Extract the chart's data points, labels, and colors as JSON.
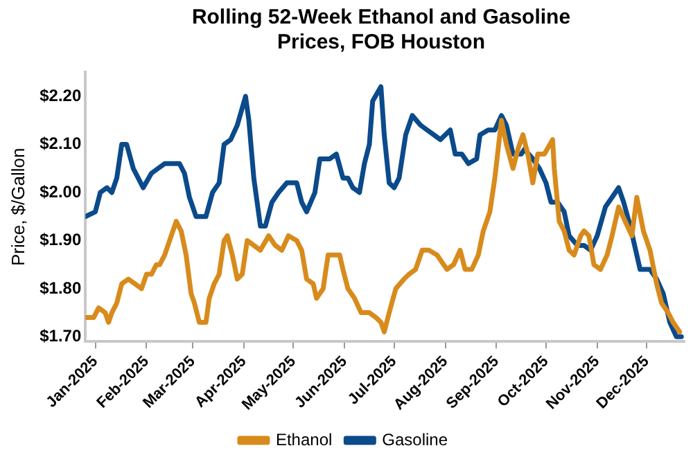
{
  "chart_data": {
    "type": "line",
    "title": "Rolling 52-Week Ethanol and Gasoline Prices, FOB Houston",
    "ylabel": "Price, $/Gallon",
    "legend": "bottom",
    "marker": "none",
    "line_style": "solid",
    "xlim": [
      "2024-12-26",
      "2025-12-24"
    ],
    "xticks": [
      {
        "value": "2025-01-01",
        "label": "Jan-2025"
      },
      {
        "value": "2025-02-01",
        "label": "Feb-2025"
      },
      {
        "value": "2025-03-01",
        "label": "Mar-2025"
      },
      {
        "value": "2025-04-01",
        "label": "Apr-2025"
      },
      {
        "value": "2025-05-01",
        "label": "May-2025"
      },
      {
        "value": "2025-06-01",
        "label": "Jun-2025"
      },
      {
        "value": "2025-07-01",
        "label": "Jul-2025"
      },
      {
        "value": "2025-08-01",
        "label": "Aug-2025"
      },
      {
        "value": "2025-09-01",
        "label": "Sep-2025"
      },
      {
        "value": "2025-10-01",
        "label": "Oct-2025"
      },
      {
        "value": "2025-11-01",
        "label": "Nov-2025"
      },
      {
        "value": "2025-12-01",
        "label": "Dec-2025"
      }
    ],
    "ylim": [
      1.69,
      2.25
    ],
    "yticks": [
      {
        "value": 1.7,
        "label": "$1.70"
      },
      {
        "value": 1.8,
        "label": "$1.80"
      },
      {
        "value": 1.9,
        "label": "$1.90"
      },
      {
        "value": 2.0,
        "label": "$2.00"
      },
      {
        "value": 2.1,
        "label": "$2.10"
      },
      {
        "value": 2.2,
        "label": "$2.20"
      }
    ],
    "series": [
      {
        "name": "Ethanol",
        "color": "#d88b1c",
        "x": [
          "2024-12-26",
          "2024-12-31",
          "2025-01-03",
          "2025-01-07",
          "2025-01-09",
          "2025-01-11",
          "2025-01-14",
          "2025-01-17",
          "2025-01-21",
          "2025-01-25",
          "2025-01-29",
          "2025-02-01",
          "2025-02-04",
          "2025-02-07",
          "2025-02-09",
          "2025-02-12",
          "2025-02-15",
          "2025-02-19",
          "2025-02-22",
          "2025-02-25",
          "2025-02-28",
          "2025-03-02",
          "2025-03-05",
          "2025-03-09",
          "2025-03-11",
          "2025-03-14",
          "2025-03-17",
          "2025-03-20",
          "2025-03-22",
          "2025-03-25",
          "2025-03-28",
          "2025-03-31",
          "2025-04-03",
          "2025-04-07",
          "2025-04-11",
          "2025-04-16",
          "2025-04-20",
          "2025-04-24",
          "2025-04-28",
          "2025-05-03",
          "2025-05-06",
          "2025-05-09",
          "2025-05-13",
          "2025-05-15",
          "2025-05-19",
          "2025-05-22",
          "2025-05-26",
          "2025-05-29",
          "2025-05-31",
          "2025-06-03",
          "2025-06-07",
          "2025-06-11",
          "2025-06-16",
          "2025-06-20",
          "2025-06-23",
          "2025-06-25",
          "2025-06-28",
          "2025-07-02",
          "2025-07-07",
          "2025-07-10",
          "2025-07-14",
          "2025-07-18",
          "2025-07-22",
          "2025-07-27",
          "2025-07-29",
          "2025-08-02",
          "2025-08-06",
          "2025-08-10",
          "2025-08-13",
          "2025-08-17",
          "2025-08-21",
          "2025-08-24",
          "2025-08-28",
          "2025-08-31",
          "2025-09-04",
          "2025-09-07",
          "2025-09-11",
          "2025-09-14",
          "2025-09-17",
          "2025-09-20",
          "2025-09-23",
          "2025-09-26",
          "2025-09-30",
          "2025-10-05",
          "2025-10-06",
          "2025-10-09",
          "2025-10-12",
          "2025-10-15",
          "2025-10-18",
          "2025-10-22",
          "2025-10-24",
          "2025-10-27",
          "2025-10-30",
          "2025-11-03",
          "2025-11-07",
          "2025-11-10",
          "2025-11-14",
          "2025-11-18",
          "2025-11-22",
          "2025-11-25",
          "2025-11-29",
          "2025-12-03",
          "2025-12-07",
          "2025-12-10",
          "2025-12-14",
          "2025-12-17",
          "2025-12-21"
        ],
        "values": [
          1.74,
          1.74,
          1.76,
          1.75,
          1.73,
          1.75,
          1.77,
          1.81,
          1.82,
          1.81,
          1.8,
          1.83,
          1.83,
          1.85,
          1.85,
          1.87,
          1.9,
          1.94,
          1.92,
          1.87,
          1.79,
          1.77,
          1.73,
          1.73,
          1.78,
          1.81,
          1.83,
          1.9,
          1.91,
          1.87,
          1.82,
          1.83,
          1.9,
          1.89,
          1.88,
          1.91,
          1.89,
          1.88,
          1.91,
          1.9,
          1.88,
          1.82,
          1.81,
          1.78,
          1.8,
          1.87,
          1.87,
          1.87,
          1.84,
          1.8,
          1.78,
          1.75,
          1.75,
          1.74,
          1.73,
          1.71,
          1.75,
          1.8,
          1.82,
          1.83,
          1.84,
          1.88,
          1.88,
          1.87,
          1.86,
          1.84,
          1.85,
          1.88,
          1.84,
          1.84,
          1.87,
          1.92,
          1.96,
          2.03,
          2.15,
          2.1,
          2.05,
          2.09,
          2.12,
          2.08,
          2.02,
          2.08,
          2.08,
          2.11,
          2.05,
          1.94,
          1.92,
          1.88,
          1.87,
          1.91,
          1.92,
          1.91,
          1.85,
          1.84,
          1.87,
          1.91,
          1.97,
          1.94,
          1.91,
          1.99,
          1.92,
          1.88,
          1.81,
          1.77,
          1.75,
          1.73,
          1.71
        ]
      },
      {
        "name": "Gasoline",
        "color": "#0b4a8b",
        "x": [
          "2024-12-26",
          "2025-01-01",
          "2025-01-04",
          "2025-01-08",
          "2025-01-11",
          "2025-01-14",
          "2025-01-17",
          "2025-01-20",
          "2025-01-24",
          "2025-01-30",
          "2025-02-04",
          "2025-02-08",
          "2025-02-12",
          "2025-02-15",
          "2025-02-21",
          "2025-02-24",
          "2025-02-27",
          "2025-03-03",
          "2025-03-09",
          "2025-03-13",
          "2025-03-17",
          "2025-03-20",
          "2025-03-24",
          "2025-03-28",
          "2025-04-02",
          "2025-04-04",
          "2025-04-07",
          "2025-04-11",
          "2025-04-14",
          "2025-04-18",
          "2025-04-22",
          "2025-04-27",
          "2025-05-03",
          "2025-05-06",
          "2025-05-09",
          "2025-05-14",
          "2025-05-17",
          "2025-05-23",
          "2025-05-27",
          "2025-05-31",
          "2025-06-03",
          "2025-06-06",
          "2025-06-10",
          "2025-06-13",
          "2025-06-16",
          "2025-06-18",
          "2025-06-23",
          "2025-06-25",
          "2025-06-28",
          "2025-07-01",
          "2025-07-04",
          "2025-07-08",
          "2025-07-12",
          "2025-07-17",
          "2025-07-21",
          "2025-07-25",
          "2025-07-29",
          "2025-08-01",
          "2025-08-04",
          "2025-08-07",
          "2025-08-11",
          "2025-08-15",
          "2025-08-20",
          "2025-08-22",
          "2025-08-27",
          "2025-08-31",
          "2025-09-04",
          "2025-09-07",
          "2025-09-11",
          "2025-09-16",
          "2025-09-18",
          "2025-09-23",
          "2025-09-27",
          "2025-10-01",
          "2025-10-04",
          "2025-10-08",
          "2025-10-12",
          "2025-10-15",
          "2025-10-20",
          "2025-10-24",
          "2025-10-28",
          "2025-11-01",
          "2025-11-06",
          "2025-11-10",
          "2025-11-14",
          "2025-11-17",
          "2025-11-21",
          "2025-11-27",
          "2025-12-03",
          "2025-12-07",
          "2025-12-11",
          "2025-12-15",
          "2025-12-19",
          "2025-12-22"
        ],
        "values": [
          1.95,
          1.96,
          2.0,
          2.01,
          2.0,
          2.03,
          2.1,
          2.1,
          2.05,
          2.01,
          2.04,
          2.05,
          2.06,
          2.06,
          2.06,
          2.04,
          1.99,
          1.95,
          1.95,
          2.0,
          2.02,
          2.1,
          2.11,
          2.14,
          2.2,
          2.15,
          2.03,
          1.93,
          1.93,
          1.98,
          2.0,
          2.02,
          2.02,
          1.98,
          1.96,
          2.0,
          2.07,
          2.07,
          2.08,
          2.03,
          2.03,
          2.01,
          2.0,
          2.06,
          2.1,
          2.19,
          2.22,
          2.12,
          2.02,
          2.01,
          2.03,
          2.12,
          2.16,
          2.14,
          2.13,
          2.12,
          2.11,
          2.12,
          2.13,
          2.08,
          2.08,
          2.06,
          2.07,
          2.12,
          2.13,
          2.13,
          2.16,
          2.14,
          2.08,
          2.08,
          2.09,
          2.07,
          2.05,
          2.02,
          1.98,
          1.98,
          1.96,
          1.91,
          1.89,
          1.89,
          1.88,
          1.91,
          1.97,
          1.99,
          2.01,
          1.98,
          1.93,
          1.84,
          1.84,
          1.82,
          1.79,
          1.73,
          1.7,
          1.7
        ]
      }
    ]
  }
}
